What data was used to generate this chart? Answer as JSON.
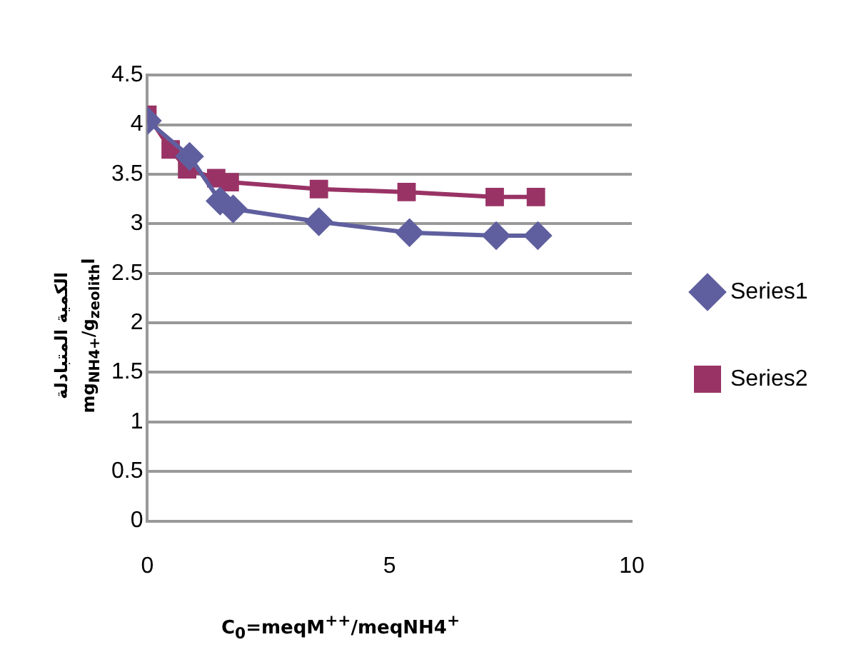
{
  "chart_data": {
    "type": "line",
    "xlabel": "C$_{0}$=meqM$^{++}$/meqNH4$^{+}$",
    "ylabel": "الكمية المتبادلة\nmg$_{NH4+}$/g$_{zeolith}$l",
    "series": [
      {
        "name": "Series1",
        "color": "#5f5f9f",
        "marker": "diamond",
        "x": [
          0,
          0.87,
          1.5,
          1.77,
          3.54,
          5.41,
          7.2,
          8.06
        ],
        "values": [
          4.04,
          3.68,
          3.23,
          3.15,
          3.02,
          2.91,
          2.88,
          2.88
        ]
      },
      {
        "name": "Series2",
        "color": "#993366",
        "marker": "square",
        "x": [
          0,
          0.48,
          0.82,
          1.42,
          1.7,
          3.54,
          5.35,
          7.17,
          8.02
        ],
        "values": [
          4.1,
          3.75,
          3.55,
          3.46,
          3.42,
          3.35,
          3.32,
          3.27,
          3.27
        ]
      }
    ],
    "xlim": [
      0,
      10
    ],
    "xticks": [
      0,
      5,
      10
    ],
    "ylim": [
      0,
      4.5
    ],
    "yticks": [
      0,
      0.5,
      1,
      1.5,
      2,
      2.5,
      3,
      3.5,
      4,
      4.5
    ],
    "grid": "y",
    "legend": "right"
  }
}
